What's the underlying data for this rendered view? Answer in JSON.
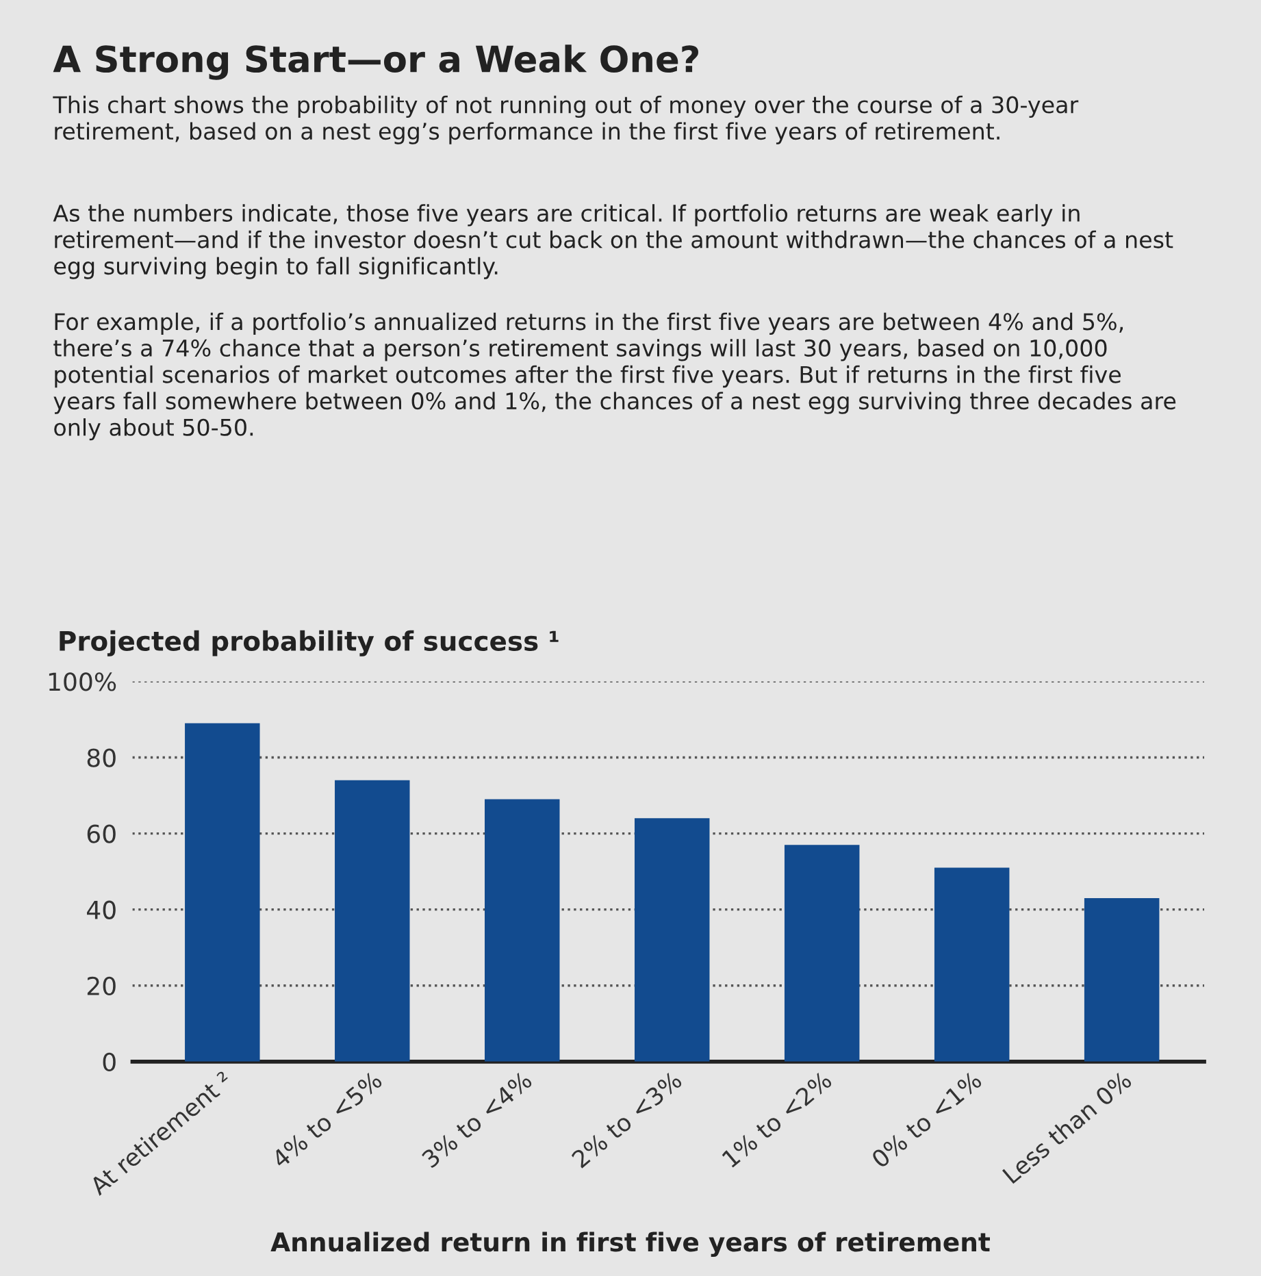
{
  "chart_data": {
    "type": "bar",
    "title": "A Strong Start—or a Weak One?",
    "subtitle": "This chart shows the probability of not running out of money over the course of a 30-year retirement, based on a nest egg’s performance in the first five years of retirement.",
    "annotations": [
      "As the numbers indicate, those five years are critical. If portfolio returns are weak early in retirement—and if the investor doesn’t cut back on the amount withdrawn—the chances of a nest egg surviving begin to fall significantly.",
      "For example, if a portfolio’s annualized returns in the first five years are between 4% and 5%, there’s a 74% chance that a person’s retirement savings will last 30 years, based on 10,000 potential scenarios of market outcomes after the first five years. But if returns in the first five years fall somewhere between 0% and 1%, the chances of a nest egg surviving three decades are only about 50-50."
    ],
    "ylabel": "Projected probability of success ¹",
    "xlabel": "Annualized return in first five years of retirement",
    "categories": [
      "At retirement ²",
      "4% to <5%",
      "3% to <4%",
      "2% to <3%",
      "1% to <2%",
      "0% to <1%",
      "Less than 0%"
    ],
    "values": [
      89,
      74,
      69,
      64,
      57,
      51,
      43
    ],
    "color": "#124b8f",
    "ylim": [
      0,
      100
    ],
    "yticks": [
      0,
      20,
      40,
      60,
      80,
      {
        "value": 100,
        "label": "100%"
      }
    ],
    "grid": "y",
    "line_style": "dotted"
  }
}
